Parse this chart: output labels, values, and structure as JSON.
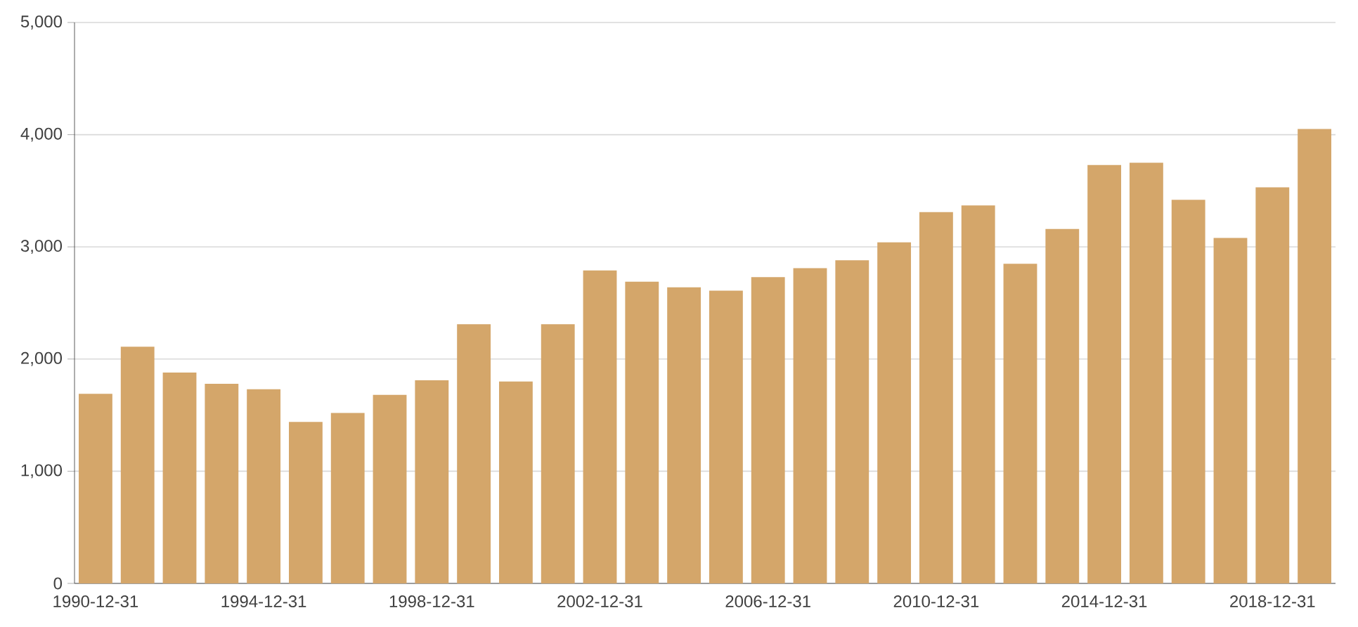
{
  "chart_data": {
    "type": "bar",
    "categories": [
      "1990-12-31",
      null,
      null,
      null,
      "1994-12-31",
      null,
      null,
      null,
      "1998-12-31",
      null,
      null,
      null,
      "2002-12-31",
      null,
      null,
      null,
      "2006-12-31",
      null,
      null,
      null,
      "2010-12-31",
      null,
      null,
      null,
      "2014-12-31",
      null,
      null,
      null,
      "2018-12-31",
      null
    ],
    "values": [
      1690,
      2110,
      1880,
      1780,
      1730,
      1440,
      1520,
      1680,
      1810,
      2310,
      1800,
      2310,
      2790,
      2690,
      2640,
      2610,
      2730,
      2810,
      2880,
      3040,
      3310,
      3370,
      2850,
      3160,
      3730,
      3750,
      3420,
      3080,
      3530,
      4050
    ],
    "color": "#d4a66a",
    "ylim": [
      0,
      5000
    ],
    "yticks": [
      0,
      {
        "value": 1000,
        "label": "1,000"
      },
      {
        "value": 2000,
        "label": "2,000"
      },
      {
        "value": 3000,
        "label": "3,000"
      },
      {
        "value": 4000,
        "label": "4,000"
      },
      {
        "value": 5000,
        "label": "5,000"
      }
    ],
    "grid": "y"
  }
}
